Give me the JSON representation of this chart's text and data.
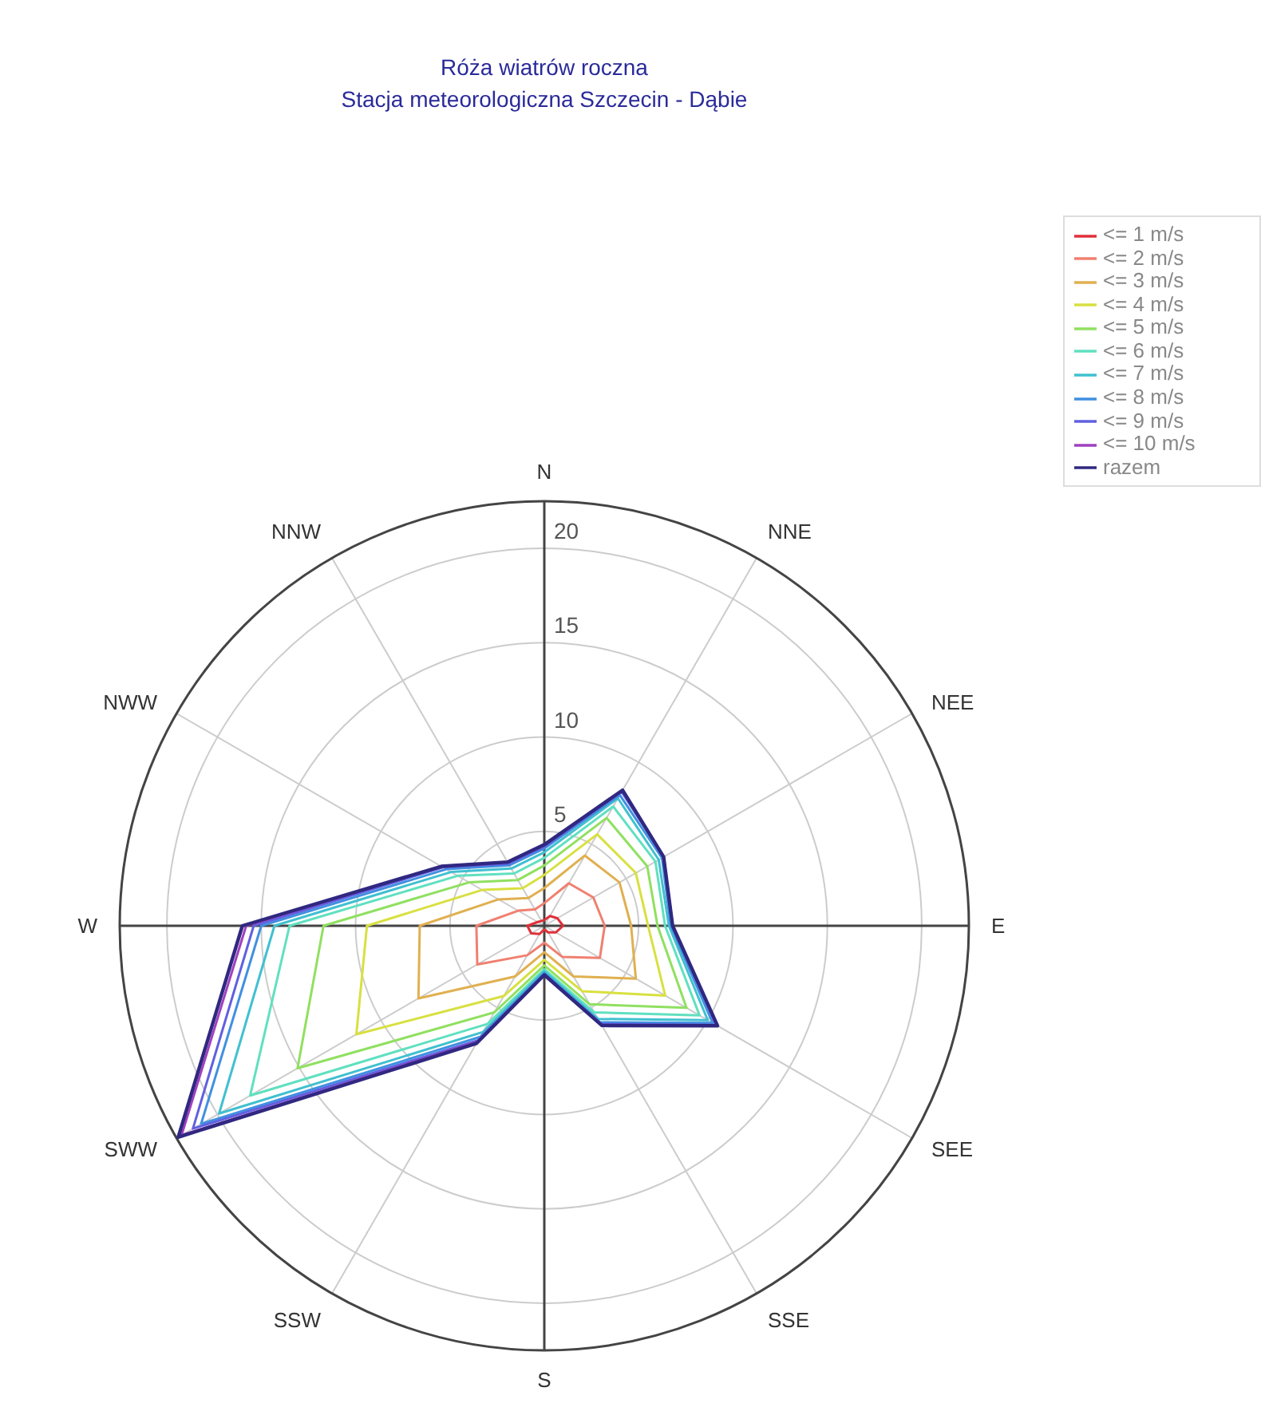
{
  "chart_data": {
    "type": "radar",
    "title": "Róża wiatrów roczna",
    "subtitle": "Stacja meteorologiczna Szczecin - Dąbie",
    "categories": [
      "N",
      "NNE",
      "NEE",
      "E",
      "SEE",
      "SSE",
      "S",
      "SSW",
      "SWW",
      "W",
      "NWW",
      "NNW"
    ],
    "ylim": [
      0,
      22.5
    ],
    "yticks": [
      5,
      10,
      15,
      20
    ],
    "grid": true,
    "legend": "top right",
    "series": [
      {
        "name": "<= 1 m/s",
        "color": "#e0303a",
        "values": [
          0.3,
          0.6,
          0.8,
          1.0,
          0.7,
          0.4,
          0.2,
          0.5,
          0.8,
          0.9,
          0.4,
          0.3
        ]
      },
      {
        "name": "<= 2 m/s",
        "color": "#f08070",
        "values": [
          1.2,
          2.6,
          3.0,
          3.2,
          3.4,
          1.9,
          0.9,
          1.8,
          4.1,
          3.6,
          1.6,
          1.0
        ]
      },
      {
        "name": "<= 3 m/s",
        "color": "#e0b050",
        "values": [
          2.0,
          4.3,
          4.6,
          4.6,
          5.6,
          3.1,
          1.4,
          3.1,
          7.7,
          6.6,
          2.8,
          1.7
        ]
      },
      {
        "name": "<= 4 m/s",
        "color": "#d8e040",
        "values": [
          2.7,
          5.6,
          5.6,
          5.5,
          7.4,
          4.0,
          1.8,
          4.3,
          11.5,
          9.4,
          3.8,
          2.3
        ]
      },
      {
        "name": "<= 5 m/s",
        "color": "#90e060",
        "values": [
          3.2,
          6.6,
          6.3,
          6.0,
          8.7,
          4.8,
          2.1,
          5.3,
          15.1,
          11.7,
          4.6,
          2.8
        ]
      },
      {
        "name": "<= 6 m/s",
        "color": "#60e0c0",
        "values": [
          3.6,
          7.3,
          6.8,
          6.4,
          9.5,
          5.3,
          2.3,
          6.0,
          18.0,
          13.5,
          5.3,
          3.2
        ]
      },
      {
        "name": "<= 7 m/s",
        "color": "#40c0d0",
        "values": [
          3.9,
          7.8,
          7.0,
          6.6,
          10.0,
          5.7,
          2.4,
          6.5,
          19.9,
          14.3,
          5.7,
          3.5
        ]
      },
      {
        "name": "<= 8 m/s",
        "color": "#4090e0",
        "values": [
          4.1,
          8.0,
          7.2,
          6.7,
          10.3,
          5.9,
          2.5,
          6.8,
          21.0,
          15.0,
          6.0,
          3.7
        ]
      },
      {
        "name": "<= 9 m/s",
        "color": "#6060e0",
        "values": [
          4.2,
          8.2,
          7.3,
          6.8,
          10.5,
          6.0,
          2.6,
          7.0,
          21.5,
          15.4,
          6.2,
          3.8
        ]
      },
      {
        "name": "<= 10 m/s",
        "color": "#a040c0",
        "values": [
          4.3,
          8.3,
          7.3,
          6.8,
          10.6,
          6.1,
          2.6,
          7.1,
          22.2,
          15.8,
          6.3,
          3.9
        ]
      },
      {
        "name": "razem",
        "color": "#302880",
        "values": [
          4.3,
          8.3,
          7.3,
          6.8,
          10.6,
          6.1,
          2.6,
          7.2,
          22.4,
          16.0,
          6.3,
          3.9
        ]
      }
    ]
  }
}
